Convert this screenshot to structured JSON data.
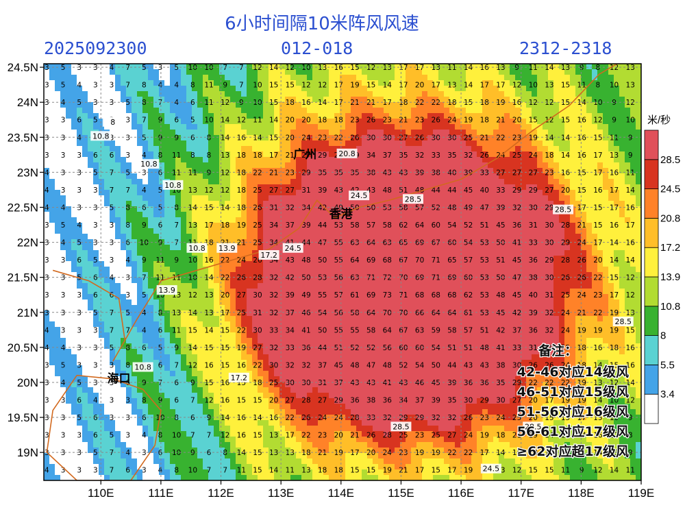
{
  "header": {
    "title": "6小时间隔10米阵风风速",
    "date": "2025092300",
    "forecast_range": "012-018",
    "time_period": "2312-2318"
  },
  "map": {
    "lon_ticks": [
      "110E",
      "111E",
      "112E",
      "113E",
      "114E",
      "115E",
      "116E",
      "117E",
      "118E",
      "119E"
    ],
    "lat_ticks": [
      "24.5N",
      "24N",
      "23.5N",
      "23N",
      "22.5N",
      "22N",
      "21.5N",
      "21N",
      "20.5N",
      "20N",
      "19.5N",
      "19N"
    ],
    "cities": [
      {
        "name": "广州",
        "lon": 113.4,
        "lat": 23.2
      },
      {
        "name": "香港",
        "lon": 114.0,
        "lat": 22.35
      },
      {
        "name": "海口",
        "lon": 110.3,
        "lat": 20.0
      }
    ],
    "storm_center": {
      "lon": 115.1,
      "lat": 21.45
    }
  },
  "colorbar": {
    "unit": "米/秒",
    "levels": [
      "3.4",
      "5.5",
      "8",
      "10.8",
      "13.9",
      "17.2",
      "20.8",
      "24.5",
      "28.5"
    ],
    "colors": [
      "#ffffff",
      "#44a4e8",
      "#5ad2d2",
      "#38b230",
      "#b2dc32",
      "#fff03c",
      "#ffbe28",
      "#ff8228",
      "#d83420",
      "#e0505a"
    ]
  },
  "contour_labels": [
    "10.8",
    "13.9",
    "17.2",
    "20.8",
    "24.5",
    "28.5",
    "8"
  ],
  "notes": {
    "title": "备注：",
    "lines": [
      "42-46对应14级风",
      "46-51对应15级风",
      "51-56对应16级风",
      "56-61对应17级风",
      "≥62对应超17级风"
    ]
  }
}
